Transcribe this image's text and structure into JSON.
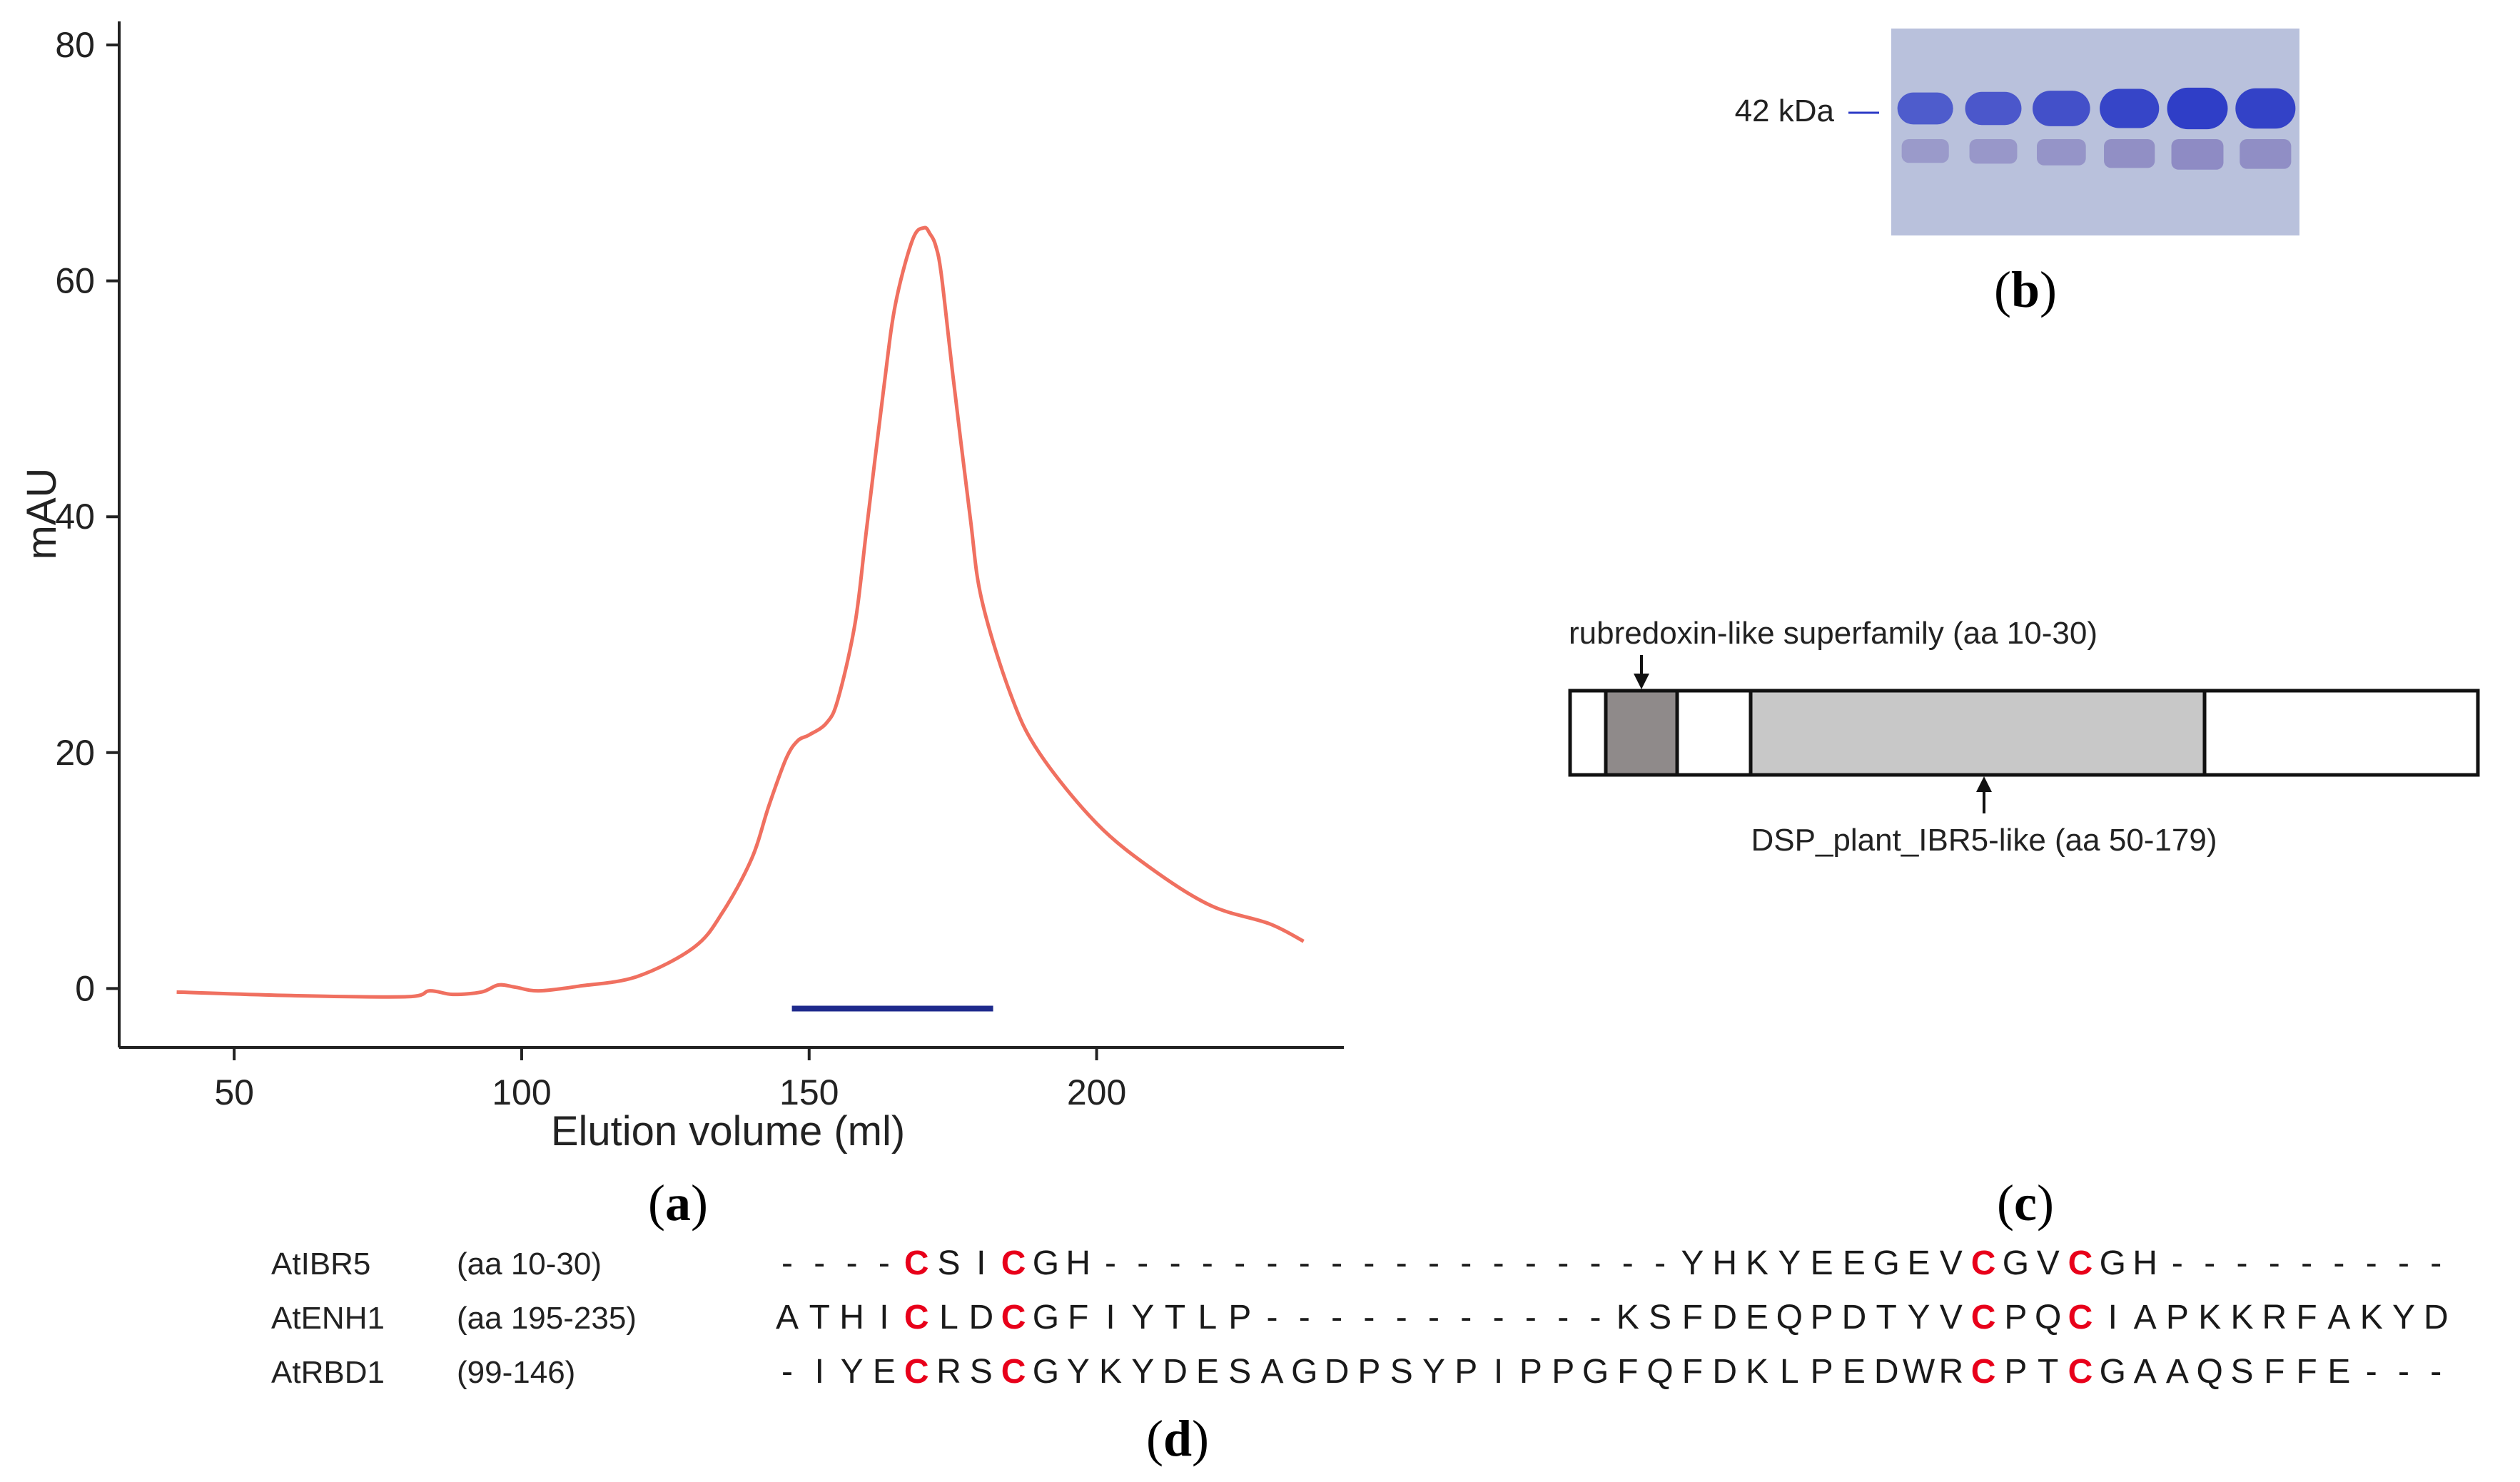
{
  "colors": {
    "trace": "#f07060",
    "bar": "#1e2a8c",
    "cys": "#e8001a",
    "gel_bg": "#b9c1dc",
    "band": "#2b3ac6",
    "motif_dark": "#8f8a8a",
    "domain_light": "#c8c8c8"
  },
  "panel_labels": {
    "a": "a",
    "b": "b",
    "c": "c",
    "d": "d"
  },
  "chart_data": {
    "type": "line",
    "xlabel": "Elution volume (ml)",
    "ylabel": "mAU",
    "xlim": [
      30,
      243
    ],
    "ylim": [
      -5,
      82
    ],
    "x_ticks": [
      "50",
      "100",
      "150",
      "200"
    ],
    "y_ticks": [
      "0",
      "20",
      "40",
      "60",
      "80"
    ],
    "series": [
      {
        "x": [
          40,
          60,
          80,
          84,
          88,
          93,
          96,
          99,
          103,
          110,
          120,
          130,
          135,
          140,
          143,
          146,
          148,
          150,
          153,
          155,
          158,
          160,
          163,
          165,
          168,
          170,
          171,
          172,
          173,
          175,
          178,
          180,
          185,
          190,
          200,
          210,
          220,
          230,
          236
        ],
        "y": [
          -0.3,
          -0.6,
          -0.7,
          -0.2,
          -0.5,
          -0.3,
          0.3,
          0.1,
          -0.2,
          0.2,
          1.0,
          3.5,
          6.5,
          11,
          15.5,
          19.5,
          21,
          21.5,
          22.5,
          24.5,
          31,
          39,
          51,
          58,
          63.5,
          64.5,
          64,
          63,
          60.5,
          52,
          40,
          33,
          25,
          20,
          14,
          10,
          7,
          5.5,
          4
        ]
      }
    ],
    "marker_bar": {
      "x_start": 147,
      "x_end": 182,
      "y": -1.7
    }
  },
  "gel": {
    "size_label": "42 kDa",
    "lane_count": 6,
    "band_intensity": [
      0.55,
      0.6,
      0.7,
      0.85,
      0.95,
      0.9
    ]
  },
  "domains": {
    "motif_label": "rubredoxin-like superfamily (aa 10-30)",
    "domain_label": "DSP_plant_IBR5-like (aa 50-179)"
  },
  "alignment": {
    "rows": [
      {
        "name": "AtIBR5",
        "range": "(aa 10-30)",
        "seq": "----CSICGH------------------YHKYEEGEVCGVCGH---------"
      },
      {
        "name": "AtENH1",
        "range": "(aa 195-235)",
        "seq": "ATHICLDCGFIYTLP-----------KSFDEQPDTYVCPQCIAPKKRFAKYD"
      },
      {
        "name": "AtRBD1",
        "range": "(99-146)",
        "seq": "-IYECRSCGYKYDESAGDPSYPIPPGFQFDKLPEDWRCPTCGAAQSFFE---"
      }
    ],
    "conserved_columns": [
      4,
      7,
      37,
      40
    ]
  }
}
